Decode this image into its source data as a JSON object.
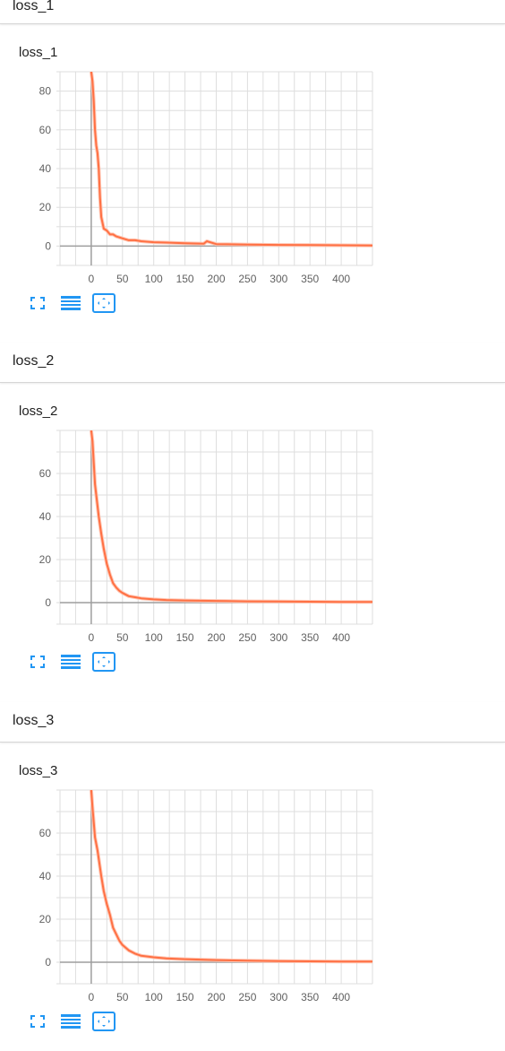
{
  "colors": {
    "accent": "#2196f3",
    "series": "#ff7043",
    "series_light": "#ffc7b5",
    "grid": "#dedede",
    "axis": "#9e9e9e"
  },
  "icons": {
    "expand": "fullscreen-icon",
    "log": "list-icon",
    "fit": "fit-domain-icon"
  },
  "sections": [
    {
      "header": "loss_1",
      "card_title": "loss_1",
      "chart_data": {
        "type": "line",
        "title": "loss_1",
        "xlabel": "",
        "ylabel": "",
        "xlim": [
          -50,
          450
        ],
        "ylim": [
          -10,
          90
        ],
        "xticks": [
          0,
          50,
          100,
          150,
          200,
          250,
          300,
          350,
          400
        ],
        "yticks": [
          0,
          20,
          40,
          60,
          80
        ],
        "x": [
          0,
          2,
          4,
          6,
          8,
          10,
          12,
          14,
          16,
          20,
          25,
          30,
          35,
          40,
          45,
          50,
          60,
          70,
          80,
          100,
          120,
          150,
          180,
          185,
          200,
          250,
          300,
          350,
          400,
          450
        ],
        "y": [
          90,
          85,
          75,
          60,
          52,
          48,
          40,
          25,
          15,
          9,
          8,
          6,
          6,
          5,
          4.5,
          4,
          3,
          3,
          2.5,
          2,
          1.8,
          1.5,
          1.2,
          2.5,
          1.0,
          0.8,
          0.6,
          0.5,
          0.4,
          0.3
        ]
      }
    },
    {
      "header": "loss_2",
      "card_title": "loss_2",
      "chart_data": {
        "type": "line",
        "title": "loss_2",
        "xlabel": "",
        "ylabel": "",
        "xlim": [
          -50,
          450
        ],
        "ylim": [
          -10,
          80
        ],
        "xticks": [
          0,
          50,
          100,
          150,
          200,
          250,
          300,
          350,
          400
        ],
        "yticks": [
          0,
          20,
          40,
          60
        ],
        "x": [
          0,
          2,
          4,
          6,
          8,
          10,
          12,
          14,
          16,
          20,
          25,
          30,
          35,
          40,
          45,
          50,
          60,
          70,
          80,
          100,
          120,
          150,
          200,
          250,
          300,
          350,
          400,
          450
        ],
        "y": [
          80,
          75,
          65,
          55,
          50,
          45,
          40,
          36,
          32,
          25,
          18,
          13,
          9,
          7,
          5.5,
          4.5,
          3,
          2.5,
          2,
          1.5,
          1.2,
          1.0,
          0.8,
          0.6,
          0.5,
          0.4,
          0.3,
          0.3
        ]
      }
    },
    {
      "header": "loss_3",
      "card_title": "loss_3",
      "chart_data": {
        "type": "line",
        "title": "loss_3",
        "xlabel": "",
        "ylabel": "",
        "xlim": [
          -50,
          450
        ],
        "ylim": [
          -10,
          80
        ],
        "xticks": [
          0,
          50,
          100,
          150,
          200,
          250,
          300,
          350,
          400
        ],
        "yticks": [
          0,
          20,
          40,
          60
        ],
        "x": [
          0,
          2,
          4,
          6,
          8,
          10,
          12,
          14,
          16,
          20,
          25,
          30,
          35,
          40,
          45,
          50,
          60,
          70,
          80,
          100,
          120,
          150,
          200,
          250,
          300,
          350,
          400,
          450
        ],
        "y": [
          80,
          72,
          65,
          58,
          55,
          52,
          48,
          44,
          40,
          33,
          27,
          22,
          16,
          13,
          10,
          8,
          5.5,
          4,
          3,
          2.3,
          1.8,
          1.4,
          1.0,
          0.7,
          0.5,
          0.4,
          0.3,
          0.3
        ]
      }
    }
  ]
}
